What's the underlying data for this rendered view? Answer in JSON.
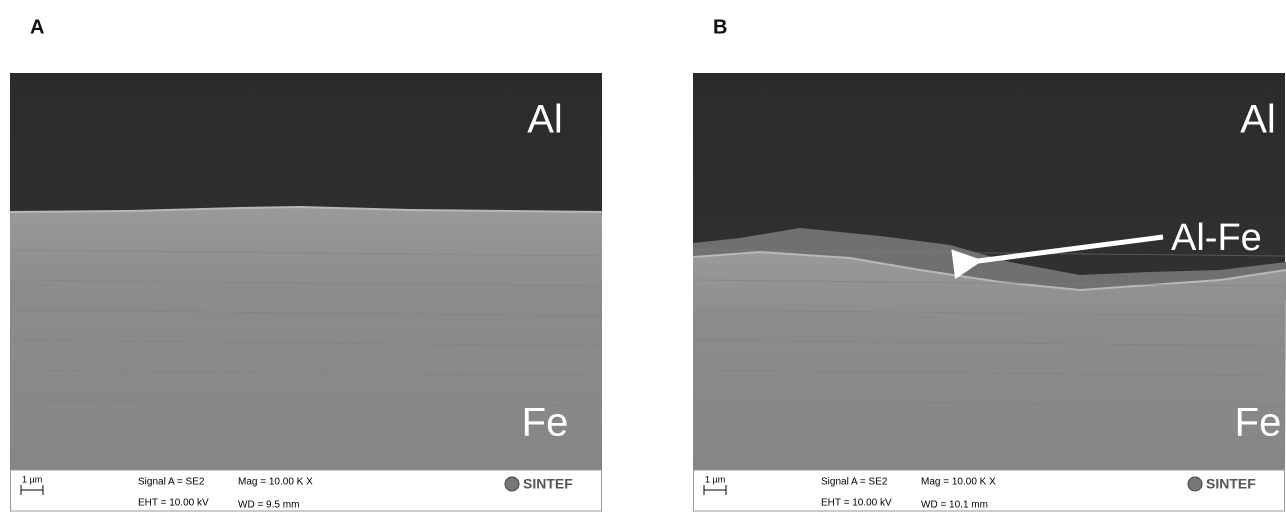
{
  "panels": [
    {
      "label": "A",
      "top_label": "Al",
      "bottom_label": "Fe",
      "info": {
        "scale": "1 µm",
        "signal": "Signal A = SE2",
        "eht": "EHT = 10.00 kV",
        "mag": "Mag =  10.00 K X",
        "wd": "WD =  9.5 mm",
        "logo": "SINTEF"
      }
    },
    {
      "label": "B",
      "top_label": "Al",
      "bottom_label": "Fe",
      "annotation": "Al-Fe",
      "info": {
        "scale": "1 µm",
        "signal": "Signal A = SE2",
        "eht": "EHT = 10.00 kV",
        "mag": "Mag =  10.00 K X",
        "wd": "WD = 10.1 mm",
        "logo": "SINTEF"
      }
    }
  ]
}
